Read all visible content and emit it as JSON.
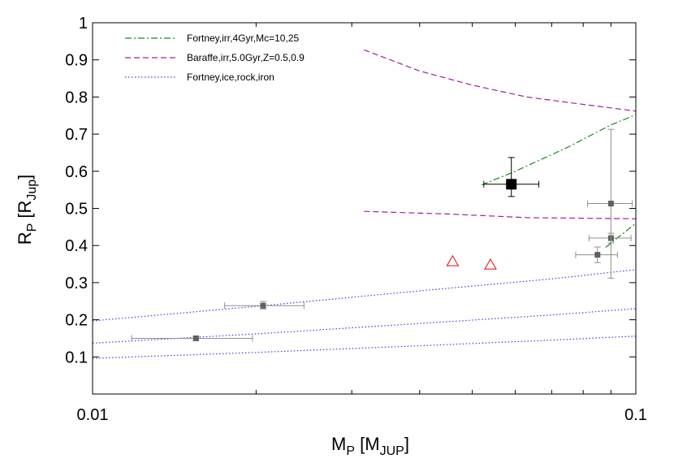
{
  "chart_data": {
    "type": "scatter",
    "x_scale": "log",
    "xlim": [
      0.01,
      0.1
    ],
    "ylim": [
      0,
      1
    ],
    "x_ticks": [
      {
        "value": 0.01,
        "label": "0.01"
      },
      {
        "value": 0.1,
        "label": "0.1"
      }
    ],
    "y_ticks": [
      {
        "value": 0.1,
        "label": "0.1"
      },
      {
        "value": 0.2,
        "label": "0.2"
      },
      {
        "value": 0.3,
        "label": "0.3"
      },
      {
        "value": 0.4,
        "label": "0.4"
      },
      {
        "value": 0.5,
        "label": "0.5"
      },
      {
        "value": 0.6,
        "label": "0.6"
      },
      {
        "value": 0.7,
        "label": "0.7"
      },
      {
        "value": 0.8,
        "label": "0.8"
      },
      {
        "value": 0.9,
        "label": "0.9"
      },
      {
        "value": 1.0,
        "label": "1"
      }
    ],
    "xlabel": {
      "main": "M",
      "sub": "P",
      "bracket_main": "M",
      "bracket_sub": "JUP"
    },
    "ylabel": {
      "main": "R",
      "sub": "P",
      "bracket_main": "R",
      "bracket_sub": "Jup"
    },
    "legend_position": "top-left",
    "grid": false,
    "series": [
      {
        "name": "Fortney,irr,4Gyr,Mc=10,25",
        "kind": "line",
        "color": "#1a8a1a",
        "dash": "dash-dot",
        "lines": [
          [
            [
              0.052,
              0.563
            ],
            [
              0.06,
              0.6
            ],
            [
              0.075,
              0.665
            ],
            [
              0.09,
              0.725
            ],
            [
              0.1,
              0.752
            ]
          ],
          [
            [
              0.088,
              0.395
            ],
            [
              0.1,
              0.46
            ]
          ]
        ]
      },
      {
        "name": "Baraffe,irr,5.0Gyr,Z=0.5,0.9",
        "kind": "line",
        "color": "#a020a0",
        "dash": "dashed",
        "lines": [
          [
            [
              0.0316,
              0.927
            ],
            [
              0.04,
              0.87
            ],
            [
              0.05,
              0.832
            ],
            [
              0.063,
              0.8
            ],
            [
              0.08,
              0.78
            ],
            [
              0.1,
              0.762
            ]
          ],
          [
            [
              0.0316,
              0.492
            ],
            [
              0.045,
              0.485
            ],
            [
              0.063,
              0.475
            ],
            [
              0.1,
              0.472
            ]
          ]
        ]
      },
      {
        "name": "Fortney,ice,rock,iron",
        "kind": "line",
        "color": "#4040e0",
        "dash": "dotted",
        "lines": [
          [
            [
              0.01,
              0.197
            ],
            [
              0.02,
              0.236
            ],
            [
              0.04,
              0.278
            ],
            [
              0.07,
              0.31
            ],
            [
              0.1,
              0.335
            ]
          ],
          [
            [
              0.01,
              0.137
            ],
            [
              0.02,
              0.162
            ],
            [
              0.04,
              0.19
            ],
            [
              0.07,
              0.213
            ],
            [
              0.1,
              0.23
            ]
          ],
          [
            [
              0.01,
              0.096
            ],
            [
              0.02,
              0.112
            ],
            [
              0.04,
              0.13
            ],
            [
              0.07,
              0.145
            ],
            [
              0.1,
              0.156
            ]
          ]
        ]
      },
      {
        "name": "",
        "kind": "points",
        "marker": "square",
        "color": "#606060",
        "points": [
          {
            "x": 0.0155,
            "y": 0.15,
            "xerr": [
              0.0118,
              0.0197
            ],
            "yerr": [
              0.145,
              0.155
            ]
          },
          {
            "x": 0.0206,
            "y": 0.238,
            "xerr": [
              0.0175,
              0.0245
            ],
            "yerr": [
              0.229,
              0.249
            ]
          },
          {
            "x": 0.085,
            "y": 0.375,
            "xerr": [
              0.0775,
              0.0925
            ],
            "yerr": [
              0.354,
              0.396
            ]
          },
          {
            "x": 0.09,
            "y": 0.42,
            "xerr": [
              0.082,
              0.098
            ],
            "yerr": [
              0.407,
              0.433
            ]
          },
          {
            "x": 0.09,
            "y": 0.513,
            "xerr": [
              0.0815,
              0.0985
            ],
            "yerr": [
              0.312,
              0.713
            ]
          }
        ]
      },
      {
        "name": "",
        "kind": "points",
        "marker": "square-large",
        "color": "#000000",
        "points": [
          {
            "x": 0.059,
            "y": 0.565,
            "xerr": [
              0.0525,
              0.0663
            ],
            "yerr": [
              0.532,
              0.637
            ]
          }
        ]
      },
      {
        "name": "",
        "kind": "points",
        "marker": "triangle-open",
        "color": "#e02020",
        "points": [
          {
            "x": 0.046,
            "y": 0.357
          },
          {
            "x": 0.054,
            "y": 0.348
          }
        ]
      }
    ]
  }
}
